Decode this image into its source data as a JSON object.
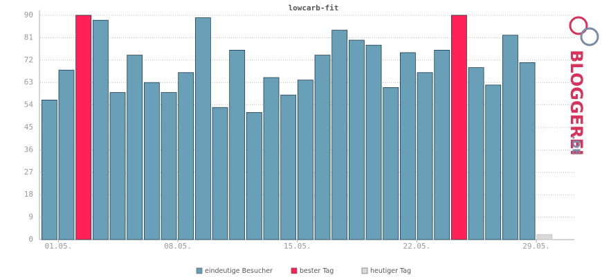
{
  "chart_data": {
    "type": "bar",
    "title": "lowcarb-fit",
    "categories": [
      "01.05.",
      null,
      null,
      null,
      null,
      null,
      null,
      "08.05.",
      null,
      null,
      null,
      null,
      null,
      null,
      "15.05.",
      null,
      null,
      null,
      null,
      null,
      null,
      "22.05.",
      null,
      null,
      null,
      null,
      null,
      null,
      "29.05.",
      null
    ],
    "series": [
      {
        "name": "eindeutige Besucher",
        "color": "#6a9fb8",
        "values": [
          56,
          68,
          null,
          88,
          59,
          74,
          63,
          59,
          67,
          89,
          53,
          76,
          51,
          65,
          58,
          64,
          74,
          84,
          80,
          78,
          61,
          75,
          67,
          76,
          null,
          69,
          62,
          82,
          71,
          null
        ]
      },
      {
        "name": "bester Tag",
        "color": "#ff2158",
        "values": [
          null,
          null,
          90,
          null,
          null,
          null,
          null,
          null,
          null,
          null,
          null,
          null,
          null,
          null,
          null,
          null,
          null,
          null,
          null,
          null,
          null,
          null,
          null,
          null,
          90,
          null,
          null,
          null,
          null,
          null
        ]
      },
      {
        "name": "heutiger Tag",
        "color": "#d9d9d9",
        "values": [
          null,
          null,
          null,
          null,
          null,
          null,
          null,
          null,
          null,
          null,
          null,
          null,
          null,
          null,
          null,
          null,
          null,
          null,
          null,
          null,
          null,
          null,
          null,
          null,
          null,
          null,
          null,
          null,
          null,
          2
        ]
      }
    ],
    "ylim": [
      0,
      90
    ],
    "yticks": [
      0,
      9,
      18,
      27,
      36,
      45,
      54,
      63,
      72,
      81,
      90
    ],
    "grid": true
  },
  "logo": {
    "name": "BLOGGEREI",
    "domain": ".DE"
  }
}
